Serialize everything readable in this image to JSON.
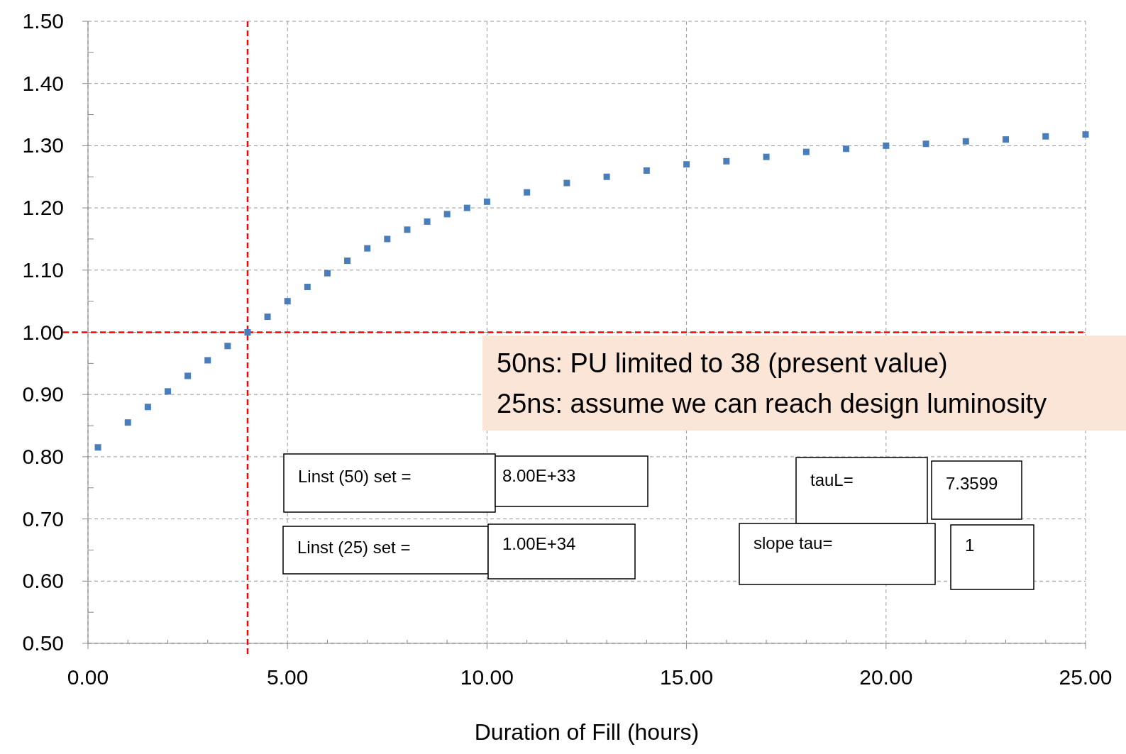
{
  "chart_data": {
    "type": "scatter",
    "xlabel": "Duration of Fill (hours)",
    "x": [
      0.25,
      1,
      1.5,
      2,
      2.5,
      3,
      3.5,
      4,
      4.5,
      5,
      5.5,
      6,
      6.5,
      7,
      7.5,
      8,
      8.5,
      9,
      9.5,
      10,
      11,
      12,
      13,
      14,
      15,
      16,
      17,
      18,
      19,
      20,
      21,
      22,
      23,
      24,
      25
    ],
    "series": [
      {
        "color": "#4a7ebb",
        "values": [
          0.815,
          0.855,
          0.88,
          0.905,
          0.93,
          0.955,
          0.978,
          1.0,
          1.025,
          1.05,
          1.073,
          1.095,
          1.115,
          1.135,
          1.15,
          1.165,
          1.178,
          1.19,
          1.2,
          1.21,
          1.225,
          1.24,
          1.25,
          1.26,
          1.27,
          1.275,
          1.282,
          1.29,
          1.295,
          1.3,
          1.303,
          1.307,
          1.31,
          1.315,
          1.318
        ]
      }
    ],
    "marker": "square",
    "grid": true,
    "xlim": [
      0,
      25
    ],
    "xticks": [
      {
        "value": 0,
        "label": "0.00"
      },
      {
        "value": 5,
        "label": "5.00"
      },
      {
        "value": 10,
        "label": "10.00"
      },
      {
        "value": 15,
        "label": "15.00"
      },
      {
        "value": 20,
        "label": "20.00"
      },
      {
        "value": 25,
        "label": "25.00"
      }
    ],
    "ylim": [
      0.5,
      1.5
    ],
    "yticks": [
      {
        "value": 0.5,
        "label": "0.50"
      },
      {
        "value": 0.6,
        "label": "0.60"
      },
      {
        "value": 0.7,
        "label": "0.70"
      },
      {
        "value": 0.8,
        "label": "0.80"
      },
      {
        "value": 0.9,
        "label": "0.90"
      },
      {
        "value": 1,
        "label": "1.00"
      },
      {
        "value": 1.1,
        "label": "1.10"
      },
      {
        "value": 1.2,
        "label": "1.20"
      },
      {
        "value": 1.3,
        "label": "1.30"
      },
      {
        "value": 1.4,
        "label": "1.40"
      },
      {
        "value": 1.5,
        "label": "1.50"
      }
    ],
    "ref_lines": [
      {
        "axis": "x",
        "value": 4,
        "color": "#ff0000",
        "line_style": "dashed"
      },
      {
        "axis": "y",
        "value": 1,
        "color": "#ff0000",
        "line_style": "dashed"
      }
    ],
    "annotations": [
      "50ns: PU limited to 38 (present value)",
      "25ns: assume we can reach design luminosity",
      "Linst (50) set =",
      "8.00E+33",
      "tauL=",
      "7.3599",
      "Linst (25) set =",
      "1.00E+34",
      "slope tau=",
      "1"
    ]
  }
}
